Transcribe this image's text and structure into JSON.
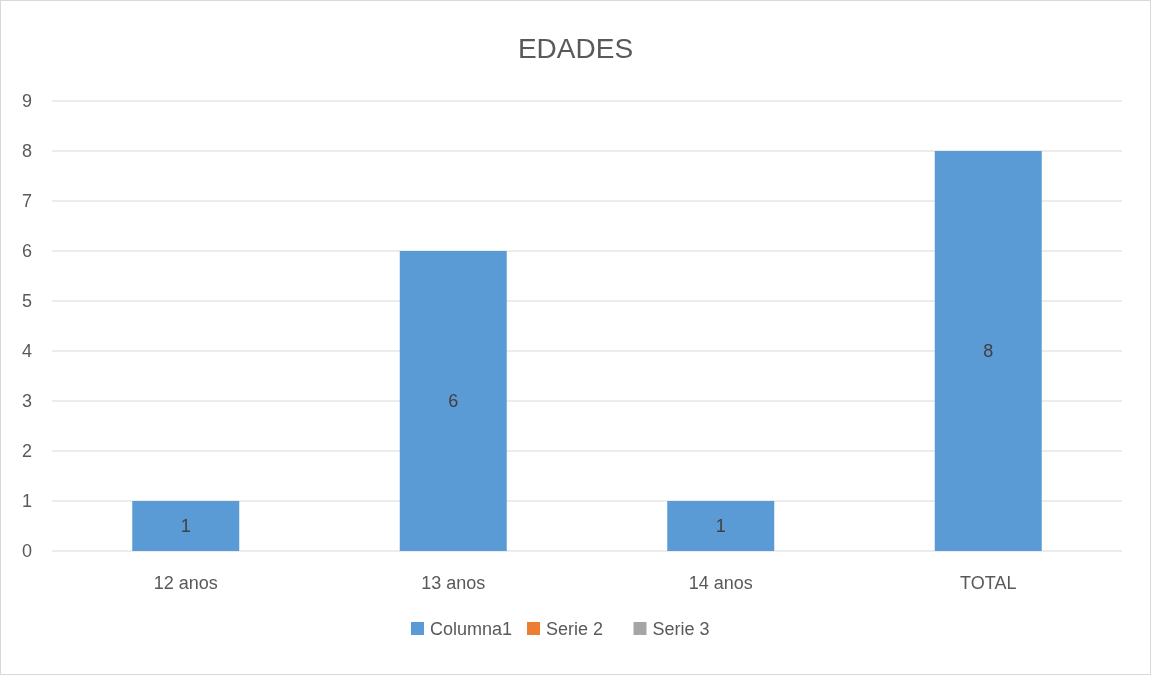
{
  "chart_data": {
    "type": "bar",
    "title": "EDADES",
    "categories": [
      "12 anos",
      "13 anos",
      "14 anos",
      "TOTAL"
    ],
    "series": [
      {
        "name": "Columna1",
        "color": "#5b9bd5",
        "values": [
          1,
          6,
          1,
          8
        ]
      },
      {
        "name": "Serie 2",
        "color": "#ed7d31",
        "values": [
          null,
          null,
          null,
          null
        ]
      },
      {
        "name": "Serie 3",
        "color": "#a5a5a5",
        "values": [
          null,
          null,
          null,
          null
        ]
      }
    ],
    "stacked": true,
    "ylim": [
      0,
      9
    ],
    "yticks": [
      0,
      1,
      2,
      3,
      4,
      5,
      6,
      7,
      8,
      9
    ],
    "grid": "y",
    "legend": "bottom",
    "data_labels": true
  }
}
